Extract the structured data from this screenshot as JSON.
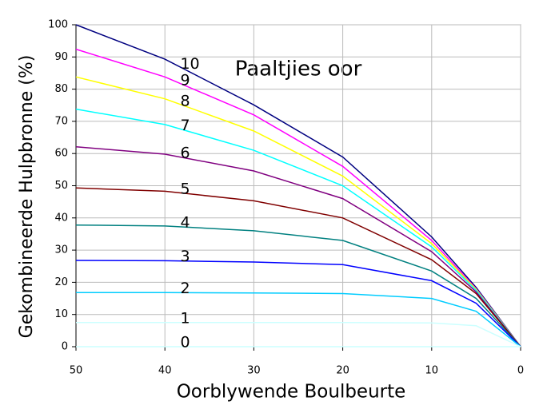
{
  "chart_data": {
    "type": "line",
    "annotation": "Paaltjies oor",
    "x_label": "Oorblywende Boulbeurte",
    "y_label": "Gekombineerde Hulpbronne (%)",
    "x": [
      50,
      40,
      30,
      20,
      10,
      5,
      0
    ],
    "xlim": [
      50,
      0
    ],
    "xticks": [
      50,
      40,
      30,
      20,
      10,
      0
    ],
    "ylim": [
      0,
      100
    ],
    "yticks": [
      0,
      10,
      20,
      30,
      40,
      50,
      60,
      70,
      80,
      90,
      100
    ],
    "grid": true,
    "series": [
      {
        "name": "10",
        "color": "#000080",
        "values": [
          100,
          89.3,
          75.1,
          58.9,
          34.1,
          18.4,
          0
        ]
      },
      {
        "name": "9",
        "color": "#ff00ff",
        "values": [
          92.4,
          83.8,
          72.0,
          56.0,
          33.0,
          18.0,
          0
        ]
      },
      {
        "name": "8",
        "color": "#ffff00",
        "values": [
          83.8,
          77.0,
          67.0,
          53.0,
          32.0,
          17.8,
          0
        ]
      },
      {
        "name": "7",
        "color": "#00ffff",
        "values": [
          73.8,
          69.0,
          61.0,
          50.0,
          31.0,
          17.5,
          0
        ]
      },
      {
        "name": "6",
        "color": "#800080",
        "values": [
          62.1,
          59.8,
          54.6,
          46.0,
          29.5,
          17.0,
          0
        ]
      },
      {
        "name": "5",
        "color": "#800000",
        "values": [
          49.3,
          48.3,
          45.3,
          40.0,
          27.0,
          16.5,
          0
        ]
      },
      {
        "name": "4",
        "color": "#008080",
        "values": [
          37.8,
          37.5,
          36.0,
          33.0,
          23.5,
          15.0,
          0
        ]
      },
      {
        "name": "3",
        "color": "#0000ff",
        "values": [
          26.8,
          26.7,
          26.3,
          25.5,
          20.5,
          13.5,
          0
        ]
      },
      {
        "name": "2",
        "color": "#00ccff",
        "values": [
          16.8,
          16.8,
          16.7,
          16.5,
          15.0,
          11.0,
          0
        ]
      },
      {
        "name": "1",
        "color": "#ccffff",
        "values": [
          7.5,
          7.5,
          7.5,
          7.5,
          7.4,
          6.5,
          0
        ]
      },
      {
        "name": "0",
        "color": "#ccffff",
        "values": [
          0,
          0,
          0,
          0,
          0,
          0,
          0
        ]
      }
    ]
  }
}
